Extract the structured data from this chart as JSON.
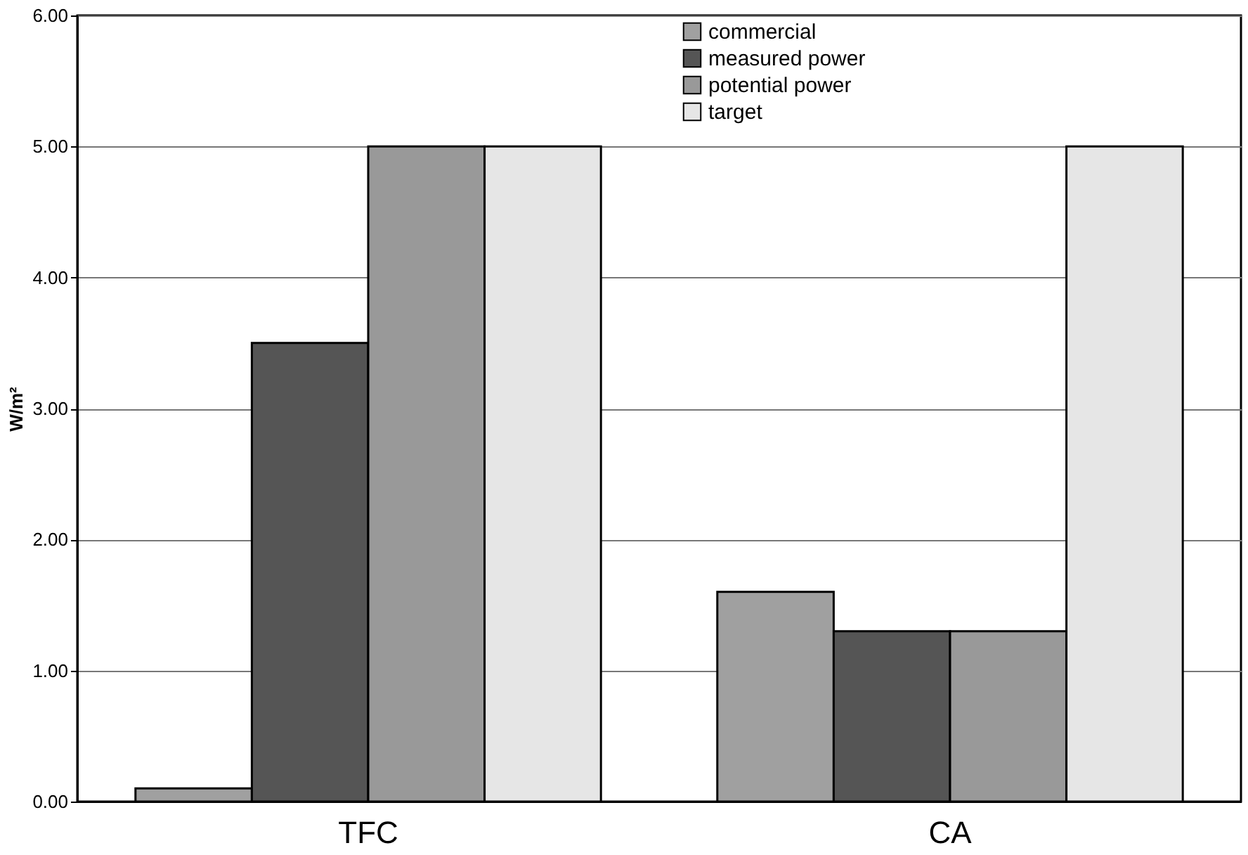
{
  "chart_data": {
    "type": "bar",
    "ylabel": "W/m²",
    "categories": [
      "TFC",
      "CA"
    ],
    "series": [
      {
        "name": "commercial",
        "color": "#a0a0a0",
        "values": [
          0.1,
          1.6
        ]
      },
      {
        "name": "measured power",
        "color": "#555555",
        "values": [
          3.5,
          1.3
        ]
      },
      {
        "name": "potential power",
        "color": "#999999",
        "values": [
          5.0,
          1.3
        ]
      },
      {
        "name": "target",
        "color": "#e6e6e6",
        "values": [
          5.0,
          5.0
        ]
      }
    ],
    "ylim": [
      0,
      6
    ],
    "yticks": [
      {
        "value": 0,
        "label": "0.00"
      },
      {
        "value": 1,
        "label": "1.00"
      },
      {
        "value": 2,
        "label": "2.00"
      },
      {
        "value": 3,
        "label": "3.00"
      },
      {
        "value": 4,
        "label": "4.00"
      },
      {
        "value": 5,
        "label": "5.00"
      },
      {
        "value": 6,
        "label": "6.00"
      }
    ],
    "grid": "y",
    "legend": "top right"
  }
}
